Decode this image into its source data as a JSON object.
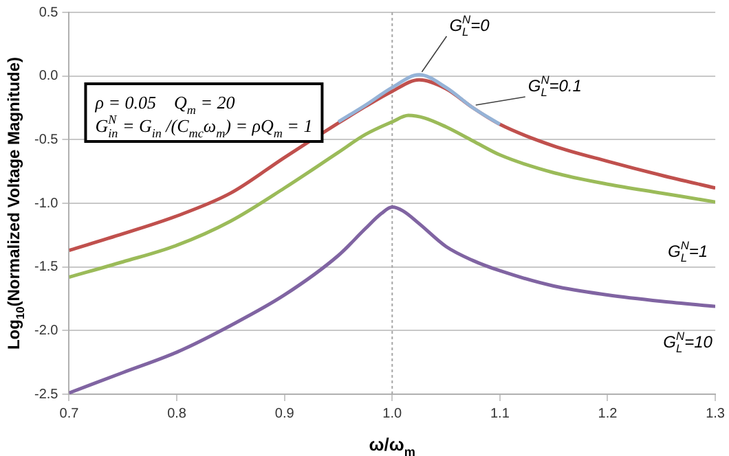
{
  "chart_data": {
    "type": "line",
    "xlabel": "ω/ω$_{m}$",
    "ylabel": "Log$_{10}$(Normalized Voltage Magnitude)",
    "xlim": [
      0.7,
      1.3
    ],
    "xticks": [
      {
        "value": 0.7,
        "label": "0.7"
      },
      {
        "value": 0.8,
        "label": "0.8"
      },
      {
        "value": 0.9,
        "label": "0.9"
      },
      {
        "value": 1.0,
        "label": "1.0"
      },
      {
        "value": 1.1,
        "label": "1.1"
      },
      {
        "value": 1.2,
        "label": "1.2"
      },
      {
        "value": 1.3,
        "label": "1.3"
      }
    ],
    "ylim": [
      -2.5,
      0.5
    ],
    "yticks": [
      {
        "value": -2.5,
        "label": "-2.5"
      },
      {
        "value": -2.0,
        "label": "-2.0"
      },
      {
        "value": -1.5,
        "label": "-1.5"
      },
      {
        "value": -1.0,
        "label": "-1.0"
      },
      {
        "value": -0.5,
        "label": "-0.5"
      },
      {
        "value": 0,
        "label": "0.0"
      },
      {
        "value": 0.5,
        "label": "0.5"
      }
    ],
    "grid": "y",
    "legend": false,
    "marker": "none",
    "line_style": "solid",
    "series": [
      {
        "name": "G$_{L}$$^{N}$=0",
        "color": "#95b3d7",
        "x": [
          0.95,
          0.975,
          1.0,
          1.025,
          1.05,
          1.075,
          1.1
        ],
        "values": [
          -0.36,
          -0.23,
          -0.09,
          0.01,
          -0.09,
          -0.25,
          -0.38
        ]
      },
      {
        "name": "G$_{L}$$^{N}$=0.1",
        "color": "#c0504d",
        "x": [
          0.7,
          0.75,
          0.8,
          0.85,
          0.9,
          0.95,
          0.975,
          1.0,
          1.025,
          1.05,
          1.075,
          1.1,
          1.15,
          1.2,
          1.25,
          1.3
        ],
        "values": [
          -1.37,
          -1.24,
          -1.1,
          -0.92,
          -0.64,
          -0.37,
          -0.24,
          -0.12,
          -0.03,
          -0.1,
          -0.25,
          -0.38,
          -0.55,
          -0.67,
          -0.78,
          -0.88
        ]
      },
      {
        "name": "G$_{L}$$^{N}$=1",
        "color": "#9bbb59",
        "x": [
          0.7,
          0.75,
          0.8,
          0.85,
          0.9,
          0.95,
          0.975,
          1.0,
          1.015,
          1.03,
          1.05,
          1.075,
          1.1,
          1.15,
          1.2,
          1.25,
          1.3
        ],
        "values": [
          -1.58,
          -1.46,
          -1.33,
          -1.14,
          -0.88,
          -0.6,
          -0.46,
          -0.36,
          -0.31,
          -0.33,
          -0.4,
          -0.51,
          -0.62,
          -0.76,
          -0.85,
          -0.92,
          -0.99
        ]
      },
      {
        "name": "G$_{L}$$^{N}$=10",
        "color": "#8064a2",
        "x": [
          0.7,
          0.75,
          0.8,
          0.85,
          0.9,
          0.95,
          0.975,
          0.99,
          1.0,
          1.01,
          1.025,
          1.05,
          1.075,
          1.1,
          1.15,
          1.2,
          1.25,
          1.3
        ],
        "values": [
          -2.49,
          -2.33,
          -2.17,
          -1.96,
          -1.72,
          -1.41,
          -1.2,
          -1.08,
          -1.03,
          -1.06,
          -1.16,
          -1.34,
          -1.45,
          -1.53,
          -1.65,
          -1.72,
          -1.77,
          -1.81
        ]
      }
    ],
    "ref_lines": [
      {
        "axis": "x",
        "value": 1.0,
        "color": "#a6a6a6",
        "line_style": "dotted"
      }
    ],
    "annotations": [
      "ρ = 0.05    Q$_{m}$ = 20",
      "G$_{in}$$^{N}$ = G$_{in}$ /(C$_{mc}$ω$_{m}$) = ρQ$_{m}$ = 1"
    ]
  }
}
